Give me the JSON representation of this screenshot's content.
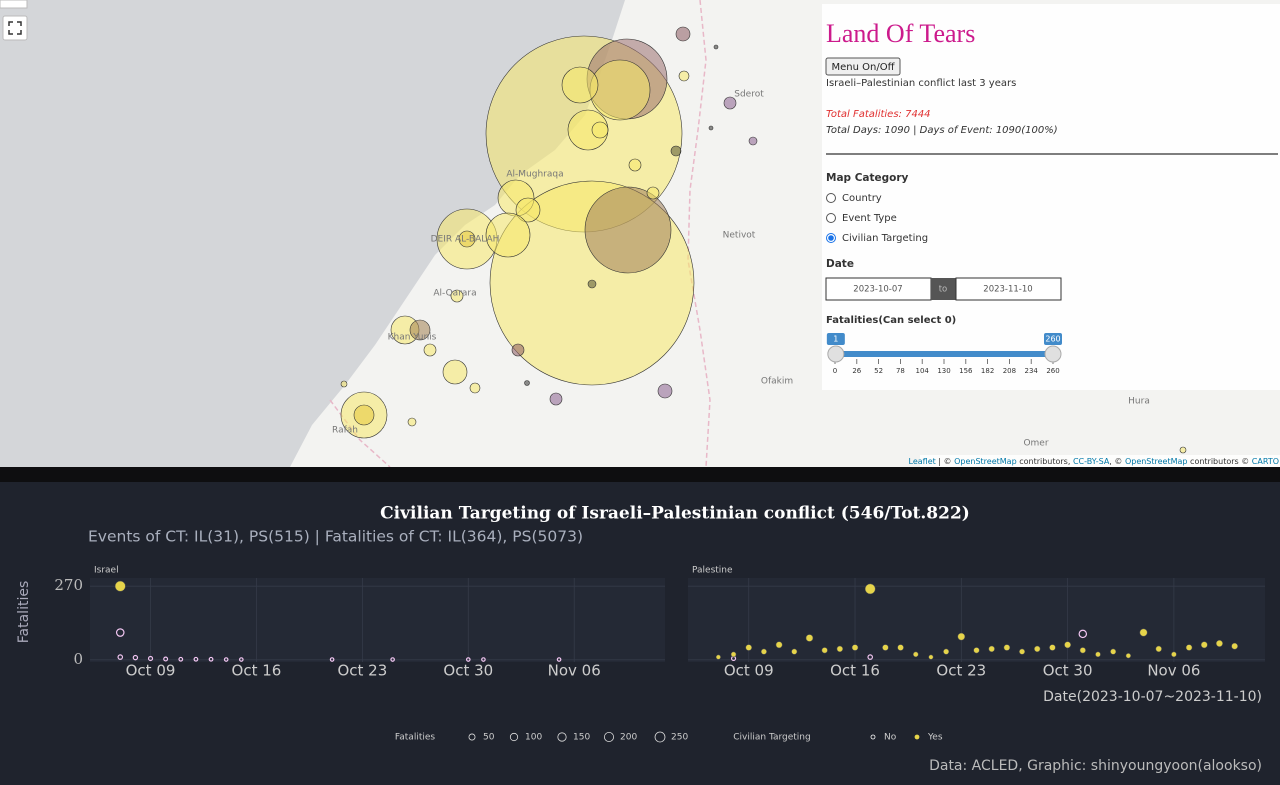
{
  "map": {
    "places": [
      "Sderot",
      "Al-Mughraqa",
      "Netivot",
      "DEIR AL-BALAH",
      "Al-Qarara",
      "Khan Yunis",
      "Rafah",
      "Ofakim",
      "Hura",
      "Omer"
    ],
    "attribution": [
      "Leaflet",
      " | © ",
      "OpenStreetMap",
      " contributors, ",
      "CC-BY-SA",
      ", © ",
      "OpenStreetMap",
      " contributors © ",
      "CARTO"
    ]
  },
  "panel": {
    "title": "Land Of Tears",
    "button": "Menu On/Off",
    "subtitle": "Israeli–Palestinian conflict last 3 years",
    "total_fatalities": "Total Fatalities: 7444",
    "total_days": "Total Days: 1090 | Days of Event: 1090(100%)",
    "map_category": {
      "label": "Map Category",
      "options": [
        "Country",
        "Event Type",
        "Civilian Targeting"
      ],
      "selected": 2
    },
    "date": {
      "label": "Date",
      "start": "2023-10-07",
      "separator": "to",
      "end": "2023-11-10"
    },
    "slider": {
      "label": "Fatalities(Can select 0)",
      "from": 1,
      "to": 260,
      "min": 0,
      "max": 260,
      "ticks": [
        0,
        26,
        52,
        78,
        104,
        130,
        156,
        182,
        208,
        234,
        260
      ]
    }
  },
  "figure": {
    "title": "Civilian Targeting of Israeli–Palestinian conflict (546/Tot.822)",
    "subtitle": "Events of CT: IL(31), PS(515) | Fatalities of CT: IL(364), PS(5073)",
    "ylabel": "Fatalities",
    "xlabel": "Date(2023-10-07~2023-11-10)",
    "size_legend": {
      "title": "Fatalities",
      "values": [
        50,
        100,
        150,
        200,
        250
      ]
    },
    "color_legend_title": "Civilian Targeting",
    "caption": "Data: ACLED, Graphic: shinyoungyoon(alookso)"
  },
  "chart_data": [
    {
      "type": "scatter",
      "title": "Israel",
      "xlim": [
        "2023-10-05",
        "2023-11-12"
      ],
      "xticks": [
        {
          "value": "2023-10-09",
          "label": "Oct 09"
        },
        {
          "value": "2023-10-16",
          "label": "Oct 16"
        },
        {
          "value": "2023-10-23",
          "label": "Oct 23"
        },
        {
          "value": "2023-10-30",
          "label": "Oct 30"
        },
        {
          "value": "2023-11-06",
          "label": "Nov 06"
        }
      ],
      "ylim": [
        -8,
        300
      ],
      "yticks": [
        0,
        270
      ],
      "grid": true,
      "series": [
        {
          "name": "No",
          "color": "#f2c6f2",
          "x": [
            "2023-10-07",
            "2023-10-07",
            "2023-10-08",
            "2023-10-09",
            "2023-10-10",
            "2023-10-11",
            "2023-10-12",
            "2023-10-13",
            "2023-10-14",
            "2023-10-15",
            "2023-10-21",
            "2023-10-25",
            "2023-10-30",
            "2023-10-31",
            "2023-11-05"
          ],
          "values": [
            100,
            10,
            8,
            5,
            3,
            2,
            2,
            2,
            1,
            1,
            1,
            1,
            1,
            1,
            1
          ]
        },
        {
          "name": "Yes",
          "color": "#e6d44a",
          "x": [
            "2023-10-07"
          ],
          "values": [
            270
          ]
        }
      ]
    },
    {
      "type": "scatter",
      "title": "Palestine",
      "xlim": [
        "2023-10-05",
        "2023-11-12"
      ],
      "xticks": [
        {
          "value": "2023-10-09",
          "label": "Oct 09"
        },
        {
          "value": "2023-10-16",
          "label": "Oct 16"
        },
        {
          "value": "2023-10-23",
          "label": "Oct 23"
        },
        {
          "value": "2023-10-30",
          "label": "Oct 30"
        },
        {
          "value": "2023-11-06",
          "label": "Nov 06"
        }
      ],
      "ylim": [
        -8,
        300
      ],
      "yticks": [
        0,
        270
      ],
      "grid": true,
      "series": [
        {
          "name": "No",
          "color": "#f2c6f2",
          "x": [
            "2023-10-08",
            "2023-10-17",
            "2023-10-31"
          ],
          "values": [
            5,
            10,
            95
          ]
        },
        {
          "name": "Yes",
          "color": "#e6d44a",
          "x": [
            "2023-10-07",
            "2023-10-08",
            "2023-10-09",
            "2023-10-10",
            "2023-10-11",
            "2023-10-12",
            "2023-10-13",
            "2023-10-14",
            "2023-10-15",
            "2023-10-16",
            "2023-10-17",
            "2023-10-18",
            "2023-10-19",
            "2023-10-20",
            "2023-10-21",
            "2023-10-22",
            "2023-10-23",
            "2023-10-24",
            "2023-10-25",
            "2023-10-26",
            "2023-10-27",
            "2023-10-28",
            "2023-10-29",
            "2023-10-30",
            "2023-10-31",
            "2023-11-01",
            "2023-11-02",
            "2023-11-03",
            "2023-11-04",
            "2023-11-05",
            "2023-11-06",
            "2023-11-07",
            "2023-11-08",
            "2023-11-09",
            "2023-11-10"
          ],
          "values": [
            10,
            20,
            45,
            30,
            55,
            30,
            80,
            35,
            40,
            45,
            260,
            45,
            45,
            20,
            10,
            30,
            85,
            35,
            40,
            45,
            30,
            40,
            45,
            55,
            35,
            20,
            30,
            15,
            100,
            40,
            20,
            45,
            55,
            60,
            50
          ]
        }
      ]
    }
  ]
}
